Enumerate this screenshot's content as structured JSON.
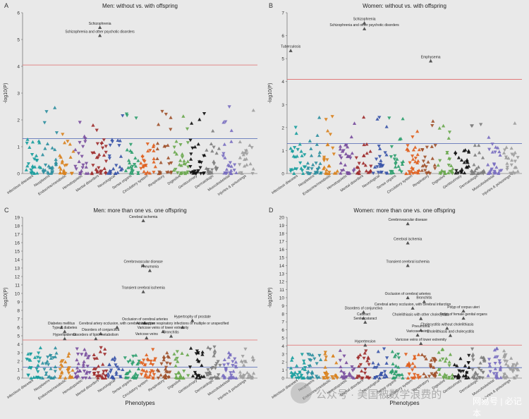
{
  "chart_data": [
    {
      "panel": "A",
      "type": "scatter",
      "title": "Men: without vs. with offspring",
      "ylabel": "-log10(P)",
      "xlabel": "",
      "ylim": [
        0,
        6
      ],
      "yticks": [
        0,
        1,
        2,
        3,
        4,
        5,
        6
      ],
      "threshold_red": 4.05,
      "threshold_blue": 1.3,
      "categories": [
        "Infectious diseases",
        "Neoplasms",
        "Endocrine/metabolic",
        "Hematopoietic",
        "Mental disorders",
        "Neurological",
        "Sense organs",
        "Circulatory system",
        "Respiratory",
        "Digestive",
        "Genitourinary",
        "Dermatologic",
        "Musculoskeletal",
        "Injuries & poisonings"
      ],
      "category_colors": [
        "#1a9e9e",
        "#2f8fa0",
        "#d9821e",
        "#7a4f9e",
        "#9e2e2e",
        "#3a55a8",
        "#2e9e6e",
        "#e0611f",
        "#a0522d",
        "#6aa84f",
        "#111111",
        "#7f7f7f",
        "#7a6fc0",
        "#9e9e9e"
      ],
      "annotations": [
        {
          "text": "Schizophrenia",
          "x": 4.55,
          "y": 5.45
        },
        {
          "text": "Schizophrenia and other psychotic disorders",
          "x": 4.55,
          "y": 5.15
        }
      ]
    },
    {
      "panel": "B",
      "type": "scatter",
      "title": "Women: without vs. with offspring",
      "ylabel": "-log10(P)",
      "xlabel": "",
      "ylim": [
        0,
        7
      ],
      "yticks": [
        0,
        1,
        2,
        3,
        4,
        5,
        6,
        7
      ],
      "threshold_red": 4.1,
      "threshold_blue": 1.3,
      "categories": [
        "Infectious diseases",
        "Neoplasms",
        "Endocrine/metabolic",
        "Hematopoietic",
        "Mental disorders",
        "Neurological",
        "Sense organs",
        "Circulatory system",
        "Respiratory",
        "Digestive",
        "Genitourinary",
        "Dermatologic",
        "Musculoskeletal",
        "Injuries & poisonings"
      ],
      "category_colors": [
        "#1a9e9e",
        "#2f8fa0",
        "#d9821e",
        "#7a4f9e",
        "#9e2e2e",
        "#3a55a8",
        "#2e9e6e",
        "#e0611f",
        "#a0522d",
        "#6aa84f",
        "#111111",
        "#7f7f7f",
        "#7a6fc0",
        "#9e9e9e"
      ],
      "annotations": [
        {
          "text": "Schizophrenia",
          "x": 4.55,
          "y": 6.55
        },
        {
          "text": "Schizophrenia and other psychotic disorders",
          "x": 4.55,
          "y": 6.3
        },
        {
          "text": "Tuberculosis",
          "x": 0.05,
          "y": 5.35
        },
        {
          "text": "Emphysema",
          "x": 8.6,
          "y": 4.9
        }
      ]
    },
    {
      "panel": "C",
      "type": "scatter",
      "title": "Men: more than one vs. one offspring",
      "ylabel": "-log10(P)",
      "xlabel": "Phenotypes",
      "ylim": [
        0,
        19
      ],
      "yticks": [
        0,
        1,
        2,
        3,
        4,
        5,
        6,
        7,
        8,
        9,
        10,
        11,
        12,
        13,
        14,
        15,
        16,
        17,
        18,
        19
      ],
      "threshold_red": 4.5,
      "threshold_blue": 1.3,
      "categories": [
        "Infectious diseases",
        "Neoplasms",
        "Endocrine/metabolic",
        "Hematopoietic",
        "Mental disorders",
        "Neurological",
        "Sense organs",
        "Circulatory system",
        "Respiratory",
        "Digestive",
        "Genitourinary",
        "Dermatologic",
        "Musculoskeletal",
        "Injuries & poisonings"
      ],
      "category_colors": [
        "#1a9e9e",
        "#2f8fa0",
        "#d9821e",
        "#7a4f9e",
        "#9e2e2e",
        "#3a55a8",
        "#2e9e6e",
        "#e0611f",
        "#a0522d",
        "#6aa84f",
        "#111111",
        "#7f7f7f",
        "#7a6fc0",
        "#9e9e9e"
      ],
      "annotations": [
        {
          "text": "Cerebral ischemia",
          "x": 7.2,
          "y": 18.6
        },
        {
          "text": "Cerebrovascular disease",
          "x": 7.2,
          "y": 13.3
        },
        {
          "text": "Pneumonia",
          "x": 7.6,
          "y": 12.7
        },
        {
          "text": "Transient cerebral ischemia",
          "x": 7.2,
          "y": 10.2
        },
        {
          "text": "Hypertrophy of prostate",
          "x": 10.2,
          "y": 6.8
        },
        {
          "text": "Occlusion of cerebral arteries",
          "x": 7.3,
          "y": 6.5
        },
        {
          "text": "Diabetes mellitus",
          "x": 2.2,
          "y": 6.0
        },
        {
          "text": "Type 2 diabetes",
          "x": 2.4,
          "y": 5.5
        },
        {
          "text": "Cerebral artery occlusion, with cerebral infarction",
          "x": 5.6,
          "y": 6.0
        },
        {
          "text": "Acute upper respiratory infections of multiple or unspecified",
          "x": 9.6,
          "y": 6.0
        },
        {
          "text": "Varicose veins of lower extremity",
          "x": 8.4,
          "y": 5.5
        },
        {
          "text": "Disorders of conjunctiva",
          "x": 4.6,
          "y": 5.25
        },
        {
          "text": "Hyperlipidemia",
          "x": 2.4,
          "y": 4.65
        },
        {
          "text": "Disorders of lipid metabolism",
          "x": 4.3,
          "y": 4.65
        },
        {
          "text": "Varicose veins",
          "x": 7.4,
          "y": 4.75
        },
        {
          "text": "Bronchitis",
          "x": 8.9,
          "y": 4.95
        }
      ]
    },
    {
      "panel": "D",
      "type": "scatter",
      "title": "Women: more than one vs. one offspring",
      "ylabel": "-log10(P)",
      "xlabel": "Phenotypes",
      "ylim": [
        0,
        20
      ],
      "yticks": [
        0,
        1,
        2,
        3,
        4,
        5,
        6,
        7,
        8,
        9,
        10,
        11,
        12,
        13,
        14,
        15,
        16,
        17,
        18,
        19,
        20
      ],
      "threshold_red": 4.1,
      "threshold_blue": 1.3,
      "categories": [
        "Infectious diseases",
        "Neoplasms",
        "Endocrine/metabolic",
        "Hematopoietic",
        "Mental disorders",
        "Neurological",
        "Sense organs",
        "Circulatory system",
        "Respiratory",
        "Digestive",
        "Genitourinary",
        "Dermatologic",
        "Musculoskeletal",
        "Injuries & poisonings"
      ],
      "category_colors": [
        "#1a9e9e",
        "#2f8fa0",
        "#d9821e",
        "#7a4f9e",
        "#9e2e2e",
        "#3a55a8",
        "#2e9e6e",
        "#e0611f",
        "#a0522d",
        "#6aa84f",
        "#111111",
        "#7f7f7f",
        "#7a6fc0",
        "#9e9e9e"
      ],
      "annotations": [
        {
          "text": "Cerebrovascular disease",
          "x": 7.2,
          "y": 19.2
        },
        {
          "text": "Cerebral ischemia",
          "x": 7.2,
          "y": 16.8
        },
        {
          "text": "Transient cerebral ischemia",
          "x": 7.2,
          "y": 14.0
        },
        {
          "text": "Occlusion of cerebral arteries",
          "x": 7.2,
          "y": 10.0
        },
        {
          "text": "Bronchitis",
          "x": 8.2,
          "y": 9.5
        },
        {
          "text": "Cerebral artery occlusion, with cerebral infarction",
          "x": 7.5,
          "y": 8.7
        },
        {
          "text": "Disorders of conjunctiva",
          "x": 4.5,
          "y": 8.2
        },
        {
          "text": "Polyp of corpus uteri",
          "x": 10.6,
          "y": 8.35
        },
        {
          "text": "Polyp of female genital organs",
          "x": 10.6,
          "y": 7.45
        },
        {
          "text": "Cataract",
          "x": 4.5,
          "y": 7.45
        },
        {
          "text": "Senile cataract",
          "x": 4.6,
          "y": 6.95
        },
        {
          "text": "Cholelithiasis with other cholecystitis",
          "x": 8.0,
          "y": 7.4
        },
        {
          "text": "Pneumonia",
          "x": 8.0,
          "y": 5.95
        },
        {
          "text": "Cholecystitis without cholelithiasis",
          "x": 9.6,
          "y": 6.2
        },
        {
          "text": "Varicose veins",
          "x": 7.8,
          "y": 5.35
        },
        {
          "text": "Cholelithiasis and cholecystitis",
          "x": 9.8,
          "y": 5.3
        },
        {
          "text": "Hypertension",
          "x": 4.6,
          "y": 4.1
        },
        {
          "text": "Varicose veins of lower extremity",
          "x": 8.0,
          "y": 4.3
        }
      ]
    }
  ],
  "panel_labels": [
    "A",
    "B",
    "C",
    "D"
  ],
  "watermark": "公众号 · 美国被数学浪费的",
  "source_tag": "网易号 | 必记本"
}
